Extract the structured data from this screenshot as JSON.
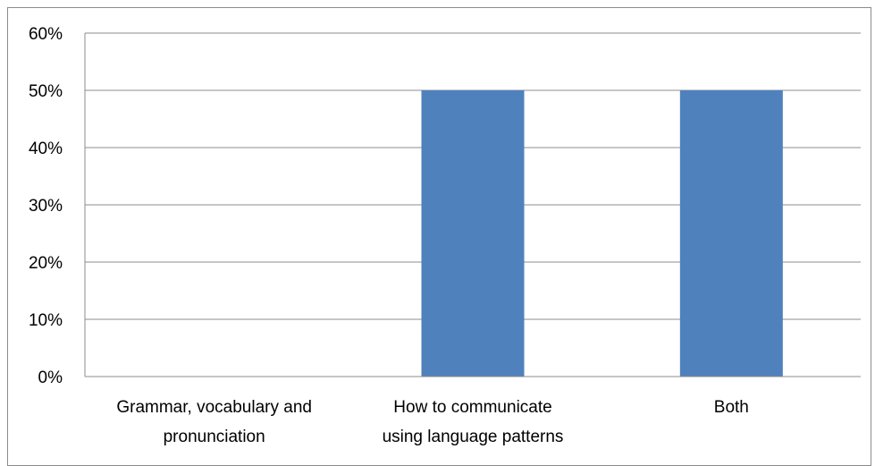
{
  "chart_data": {
    "type": "bar",
    "categories": [
      [
        "Grammar, vocabulary and",
        "pronunciation"
      ],
      [
        "How to communicate",
        "using language patterns"
      ],
      [
        "Both"
      ]
    ],
    "values": [
      0,
      50,
      50
    ],
    "ylim": [
      0,
      60
    ],
    "yticks": [
      "0%",
      "10%",
      "20%",
      "30%",
      "40%",
      "50%",
      "60%"
    ],
    "grid": true,
    "legend": "none",
    "colors": {
      "bar": "#4f81bd",
      "grid": "#8c8c8c",
      "axis": "#8c8c8c"
    }
  }
}
